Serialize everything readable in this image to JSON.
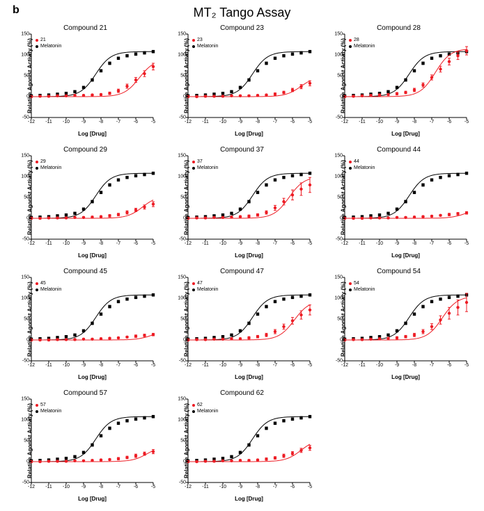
{
  "panel_label": "b",
  "main_title": "MT₂ Tango Assay",
  "ylabel": "Relative Agonist Activity (%)",
  "xlabel": "Log [Drug]",
  "xlim": [
    -12,
    -5
  ],
  "ylim": [
    -50,
    150
  ],
  "xticks": [
    -12,
    -11,
    -10,
    -9,
    -8,
    -7,
    -6,
    -5
  ],
  "yticks": [
    -50,
    0,
    50,
    100,
    150
  ],
  "colors": {
    "compound": "#ed1c24",
    "melatonin": "#000000",
    "axis": "#000000",
    "background": "#ffffff"
  },
  "marker_size": 2.2,
  "line_width": 1,
  "font_family": "Arial",
  "tick_fontsize": 7,
  "label_fontsize": 8,
  "subtitle_fontsize": 10,
  "maintitle_fontsize": 18,
  "legend_fontsize": 7,
  "legend_label_melatonin": "Melatonin",
  "melatonin_series": {
    "x": [
      -12,
      -11.5,
      -11,
      -10.5,
      -10,
      -9.5,
      -9,
      -8.5,
      -8,
      -7.5,
      -7,
      -6.5,
      -6,
      -5.5,
      -5
    ],
    "y": [
      2,
      3,
      4,
      6,
      8,
      12,
      22,
      40,
      62,
      80,
      92,
      98,
      102,
      105,
      108
    ],
    "err": [
      2,
      2,
      2,
      2,
      2,
      2,
      3,
      3,
      3,
      3,
      3,
      3,
      3,
      3,
      3
    ],
    "ec50": -8.3
  },
  "subplots": [
    {
      "title": "Compound 21",
      "compound_label": "21",
      "compound": {
        "x": [
          -12,
          -11.5,
          -11,
          -10.5,
          -10,
          -9.5,
          -9,
          -8.5,
          -8,
          -7.5,
          -7,
          -6.5,
          -6,
          -5.5,
          -5
        ],
        "y": [
          0,
          1,
          1,
          2,
          2,
          3,
          3,
          4,
          5,
          8,
          14,
          25,
          40,
          55,
          72
        ],
        "err": [
          2,
          2,
          2,
          2,
          2,
          2,
          2,
          2,
          2,
          3,
          4,
          5,
          6,
          7,
          8
        ],
        "ec50": -5.8,
        "emax": 90
      }
    },
    {
      "title": "Compound 23",
      "compound_label": "23",
      "compound": {
        "x": [
          -12,
          -11.5,
          -11,
          -10.5,
          -10,
          -9.5,
          -9,
          -8.5,
          -8,
          -7.5,
          -7,
          -6.5,
          -6,
          -5.5,
          -5
        ],
        "y": [
          0,
          0,
          1,
          1,
          1,
          2,
          2,
          2,
          3,
          4,
          6,
          10,
          16,
          24,
          32
        ],
        "err": [
          2,
          2,
          2,
          2,
          2,
          2,
          2,
          2,
          2,
          2,
          3,
          3,
          4,
          5,
          6
        ],
        "ec50": -5.5,
        "emax": 50
      }
    },
    {
      "title": "Compound 28",
      "compound_label": "28",
      "compound": {
        "x": [
          -12,
          -11.5,
          -11,
          -10.5,
          -10,
          -9.5,
          -9,
          -8.5,
          -8,
          -7.5,
          -7,
          -6.5,
          -6,
          -5.5,
          -5
        ],
        "y": [
          0,
          1,
          2,
          3,
          4,
          5,
          7,
          10,
          16,
          28,
          46,
          66,
          84,
          98,
          110
        ],
        "err": [
          2,
          2,
          2,
          2,
          2,
          2,
          3,
          3,
          4,
          5,
          6,
          7,
          8,
          9,
          10
        ],
        "ec50": -6.8,
        "emax": 115
      }
    },
    {
      "title": "Compound 29",
      "compound_label": "29",
      "compound": {
        "x": [
          -12,
          -11.5,
          -11,
          -10.5,
          -10,
          -9.5,
          -9,
          -8.5,
          -8,
          -7.5,
          -7,
          -6.5,
          -6,
          -5.5,
          -5
        ],
        "y": [
          0,
          0,
          1,
          1,
          1,
          2,
          2,
          3,
          4,
          6,
          9,
          14,
          20,
          27,
          34
        ],
        "err": [
          2,
          2,
          2,
          2,
          2,
          2,
          2,
          2,
          2,
          3,
          3,
          4,
          4,
          5,
          6
        ],
        "ec50": -5.6,
        "emax": 55
      }
    },
    {
      "title": "Compound 37",
      "compound_label": "37",
      "compound": {
        "x": [
          -12,
          -11.5,
          -11,
          -10.5,
          -10,
          -9.5,
          -9,
          -8.5,
          -8,
          -7.5,
          -7,
          -6.5,
          -6,
          -5.5,
          -5
        ],
        "y": [
          0,
          1,
          1,
          2,
          2,
          3,
          4,
          5,
          8,
          14,
          25,
          40,
          56,
          70,
          80
        ],
        "err": [
          2,
          2,
          2,
          2,
          2,
          2,
          2,
          3,
          3,
          4,
          6,
          8,
          12,
          15,
          18
        ],
        "ec50": -6.2,
        "emax": 100
      }
    },
    {
      "title": "Compound 44",
      "compound_label": "44",
      "compound": {
        "x": [
          -12,
          -11.5,
          -11,
          -10.5,
          -10,
          -9.5,
          -9,
          -8.5,
          -8,
          -7.5,
          -7,
          -6.5,
          -6,
          -5.5,
          -5
        ],
        "y": [
          0,
          0,
          0,
          1,
          1,
          1,
          2,
          2,
          3,
          4,
          5,
          7,
          9,
          11,
          13
        ],
        "err": [
          2,
          2,
          2,
          2,
          2,
          2,
          2,
          2,
          2,
          2,
          2,
          2,
          3,
          3,
          3
        ],
        "ec50": -5.0,
        "emax": 25
      }
    },
    {
      "title": "Compound 45",
      "compound_label": "45",
      "compound": {
        "x": [
          -12,
          -11.5,
          -11,
          -10.5,
          -10,
          -9.5,
          -9,
          -8.5,
          -8,
          -7.5,
          -7,
          -6.5,
          -6,
          -5.5,
          -5
        ],
        "y": [
          0,
          0,
          0,
          1,
          1,
          1,
          2,
          2,
          3,
          4,
          5,
          7,
          9,
          11,
          13
        ],
        "err": [
          2,
          2,
          2,
          2,
          2,
          2,
          2,
          2,
          2,
          2,
          2,
          2,
          3,
          3,
          3
        ],
        "ec50": -5.0,
        "emax": 25
      }
    },
    {
      "title": "Compound 47",
      "compound_label": "47",
      "compound": {
        "x": [
          -12,
          -11.5,
          -11,
          -10.5,
          -10,
          -9.5,
          -9,
          -8.5,
          -8,
          -7.5,
          -7,
          -6.5,
          -6,
          -5.5,
          -5
        ],
        "y": [
          0,
          1,
          1,
          2,
          2,
          3,
          3,
          5,
          8,
          12,
          20,
          32,
          46,
          60,
          72
        ],
        "err": [
          2,
          2,
          2,
          2,
          2,
          2,
          2,
          3,
          3,
          4,
          5,
          6,
          8,
          10,
          12
        ],
        "ec50": -5.9,
        "emax": 95
      }
    },
    {
      "title": "Compound 54",
      "compound_label": "54",
      "compound": {
        "x": [
          -12,
          -11.5,
          -11,
          -10.5,
          -10,
          -9.5,
          -9,
          -8.5,
          -8,
          -7.5,
          -7,
          -6.5,
          -6,
          -5.5,
          -5
        ],
        "y": [
          0,
          1,
          1,
          2,
          3,
          4,
          5,
          8,
          12,
          20,
          32,
          48,
          64,
          78,
          90
        ],
        "err": [
          2,
          2,
          2,
          2,
          2,
          2,
          3,
          3,
          4,
          5,
          7,
          10,
          14,
          18,
          22
        ],
        "ec50": -6.4,
        "emax": 105
      }
    },
    {
      "title": "Compound 57",
      "compound_label": "57",
      "compound": {
        "x": [
          -12,
          -11.5,
          -11,
          -10.5,
          -10,
          -9.5,
          -9,
          -8.5,
          -8,
          -7.5,
          -7,
          -6.5,
          -6,
          -5.5,
          -5
        ],
        "y": [
          0,
          0,
          1,
          1,
          1,
          2,
          2,
          3,
          4,
          5,
          7,
          10,
          14,
          19,
          24
        ],
        "err": [
          2,
          2,
          2,
          2,
          2,
          2,
          2,
          2,
          2,
          2,
          3,
          3,
          4,
          4,
          5
        ],
        "ec50": -5.3,
        "emax": 40
      }
    },
    {
      "title": "Compound 62",
      "compound_label": "62",
      "compound": {
        "x": [
          -12,
          -11.5,
          -11,
          -10.5,
          -10,
          -9.5,
          -9,
          -8.5,
          -8,
          -7.5,
          -7,
          -6.5,
          -6,
          -5.5,
          -5
        ],
        "y": [
          0,
          0,
          1,
          1,
          2,
          2,
          3,
          3,
          4,
          6,
          9,
          14,
          20,
          27,
          33
        ],
        "err": [
          2,
          2,
          2,
          2,
          2,
          2,
          2,
          2,
          2,
          3,
          3,
          4,
          4,
          5,
          6
        ],
        "ec50": -5.5,
        "emax": 55
      }
    }
  ]
}
